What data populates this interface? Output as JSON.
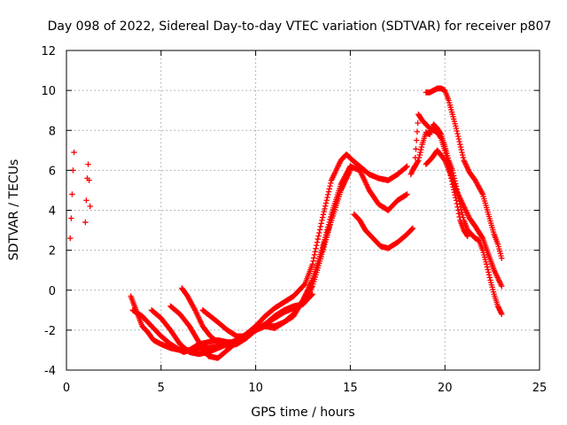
{
  "chart_data": {
    "type": "scatter",
    "title": "Day 098 of 2022, Sidereal Day-to-day VTEC variation (SDTVAR) for receiver p807",
    "xlabel": "GPS time / hours",
    "ylabel": "SDTVAR / TECUs",
    "xlim": [
      0,
      25
    ],
    "ylim": [
      -4,
      12
    ],
    "xticks": [
      0,
      5,
      10,
      15,
      20,
      25
    ],
    "yticks": [
      -4,
      -2,
      0,
      2,
      4,
      6,
      8,
      10,
      12
    ],
    "xtick_labels": [
      "0",
      "5",
      "10",
      "15",
      "20",
      "25"
    ],
    "ytick_labels": [
      "-4",
      "-2",
      "0",
      "2",
      "4",
      "6",
      "8",
      "10",
      "12"
    ],
    "grid": true,
    "marker": "plus",
    "color": "#ff0000",
    "series": [
      {
        "name": "s1",
        "x": [
          0.2,
          0.25,
          0.3,
          0.35,
          0.4
        ],
        "y": [
          2.6,
          3.6,
          4.8,
          6.0,
          6.9
        ]
      },
      {
        "name": "s2",
        "x": [
          1.0,
          1.05,
          1.1,
          1.15,
          1.2,
          1.25
        ],
        "y": [
          3.4,
          4.5,
          5.6,
          6.3,
          5.5,
          4.2
        ]
      },
      {
        "name": "s3",
        "x": [
          3.4,
          3.6,
          3.8,
          4.0,
          4.3,
          4.6,
          5.0,
          5.5,
          6.0,
          6.5,
          7.0,
          7.5,
          8.0,
          8.5,
          9.0,
          9.5,
          10.0,
          10.5,
          11.0,
          11.5,
          12.0,
          12.3,
          12.6,
          13.0,
          13.5,
          14.0,
          14.5,
          14.8,
          15.0,
          15.5,
          16.0,
          16.5,
          17.0,
          17.5,
          18.0
        ],
        "y": [
          -0.3,
          -0.8,
          -1.3,
          -1.8,
          -2.1,
          -2.5,
          -2.7,
          -2.9,
          -3.0,
          -3.0,
          -2.9,
          -2.9,
          -2.8,
          -2.7,
          -2.5,
          -2.2,
          -1.8,
          -1.3,
          -0.9,
          -0.6,
          -0.3,
          0.0,
          0.3,
          1.3,
          3.5,
          5.5,
          6.5,
          6.8,
          6.6,
          6.2,
          5.8,
          5.6,
          5.5,
          5.8,
          6.2
        ]
      },
      {
        "name": "s4",
        "x": [
          3.5,
          4.0,
          4.5,
          5.0,
          5.5,
          6.0,
          6.2,
          6.5,
          7.0,
          7.5,
          8.0,
          8.5,
          9.0,
          9.5,
          10.0,
          10.5,
          11.0,
          11.5,
          12.0,
          12.5,
          13.0,
          13.5,
          14.0,
          14.5,
          15.0,
          15.5,
          16.0,
          16.5,
          17.0,
          17.5,
          18.0
        ],
        "y": [
          -1.0,
          -1.3,
          -1.8,
          -2.3,
          -2.7,
          -3.0,
          -3.1,
          -3.0,
          -2.7,
          -2.6,
          -2.5,
          -2.6,
          -2.6,
          -2.3,
          -2.0,
          -1.8,
          -1.8,
          -1.6,
          -1.3,
          -0.5,
          0.5,
          2.0,
          3.8,
          5.3,
          6.2,
          6.0,
          5.0,
          4.3,
          4.0,
          4.5,
          4.8
        ]
      },
      {
        "name": "s5",
        "x": [
          4.5,
          5.0,
          5.5,
          6.0,
          6.5,
          7.0,
          7.5,
          8.0,
          8.5,
          9.0,
          9.5,
          10.0,
          10.5,
          11.0,
          11.5,
          12.0,
          12.5,
          13.0,
          13.5,
          14.0,
          14.5,
          15.0
        ],
        "y": [
          -1.0,
          -1.4,
          -2.0,
          -2.7,
          -3.1,
          -3.2,
          -3.1,
          -2.9,
          -2.7,
          -2.5,
          -2.3,
          -2.0,
          -1.8,
          -1.9,
          -1.6,
          -1.2,
          -0.5,
          0.5,
          2.0,
          3.5,
          5.0,
          6.2
        ]
      },
      {
        "name": "s6",
        "x": [
          5.5,
          6.0,
          6.5,
          7.0,
          7.5,
          8.0,
          8.5,
          9.0,
          9.5,
          10.0,
          10.5,
          11.0,
          11.5,
          12.0,
          12.5,
          13.0,
          13.5,
          14.0,
          14.5,
          15.0
        ],
        "y": [
          -0.8,
          -1.2,
          -1.8,
          -2.6,
          -3.3,
          -3.4,
          -3.0,
          -2.6,
          -2.3,
          -2.0,
          -1.7,
          -1.4,
          -1.1,
          -0.9,
          -0.7,
          0.2,
          1.8,
          3.5,
          5.0,
          6.0
        ]
      },
      {
        "name": "s7",
        "x": [
          6.1,
          6.4,
          6.8,
          7.2,
          7.6,
          8.0,
          8.5,
          9.0,
          9.5,
          10.0
        ],
        "y": [
          0.1,
          -0.3,
          -1.0,
          -1.8,
          -2.3,
          -2.6,
          -2.8,
          -2.7,
          -2.4,
          -2.0
        ]
      },
      {
        "name": "s8",
        "x": [
          7.2,
          7.6,
          8.0,
          8.5,
          9.0,
          9.5,
          10.0,
          10.5,
          11.0,
          11.5,
          12.0,
          12.5,
          13.0
        ],
        "y": [
          -1.0,
          -1.3,
          -1.6,
          -2.0,
          -2.3,
          -2.3,
          -2.0,
          -1.7,
          -1.3,
          -1.0,
          -0.8,
          -0.7,
          -0.2
        ]
      },
      {
        "name": "s9",
        "x": [
          15.2,
          15.5,
          15.8,
          16.0,
          16.3,
          16.6,
          17.0,
          17.5,
          18.0,
          18.3
        ],
        "y": [
          3.8,
          3.5,
          3.0,
          2.8,
          2.5,
          2.2,
          2.1,
          2.4,
          2.8,
          3.1
        ]
      },
      {
        "name": "s10",
        "x": [
          18.3,
          18.6,
          18.8,
          19.0,
          19.2,
          19.4,
          19.6,
          19.8,
          20.0,
          20.2,
          20.4,
          20.6,
          20.8,
          21.0,
          21.2,
          21.4,
          21.6,
          21.8,
          22.0,
          22.2,
          22.4,
          22.6,
          22.8,
          23.0
        ],
        "y": [
          6.0,
          6.5,
          7.3,
          7.9,
          7.8,
          8.3,
          8.1,
          7.8,
          7.2,
          6.5,
          6.0,
          5.2,
          4.3,
          3.5,
          3.0,
          2.8,
          2.6,
          2.5,
          2.0,
          1.3,
          0.5,
          -0.2,
          -0.8,
          -1.2
        ]
      },
      {
        "name": "s11",
        "x": [
          18.2,
          18.4,
          18.6,
          18.8,
          19.0,
          19.2,
          19.4,
          19.6,
          19.8,
          20.0,
          20.2,
          20.4,
          20.6,
          20.8,
          21.0,
          21.2
        ],
        "y": [
          5.8,
          6.2,
          8.8,
          8.5,
          8.3,
          8.1,
          8.0,
          7.9,
          7.6,
          7.0,
          6.2,
          5.3,
          4.5,
          3.5,
          3.0,
          2.7
        ]
      },
      {
        "name": "s12",
        "x": [
          19.0,
          19.2,
          19.4,
          19.6,
          19.8,
          20.0,
          20.2,
          20.4,
          20.6,
          20.8,
          21.0,
          21.3,
          21.6,
          22.0,
          22.3,
          22.6,
          22.8,
          23.0
        ],
        "y": [
          9.9,
          9.9,
          10.0,
          10.1,
          10.1,
          10.0,
          9.5,
          8.8,
          8.1,
          7.3,
          6.5,
          5.9,
          5.5,
          4.8,
          3.8,
          2.8,
          2.3,
          1.6
        ]
      },
      {
        "name": "s13",
        "x": [
          19.0,
          19.3,
          19.6,
          20.0,
          20.3,
          20.6,
          21.0,
          21.3,
          21.6,
          22.0,
          22.3,
          22.6,
          23.0
        ],
        "y": [
          6.3,
          6.6,
          7.0,
          6.5,
          5.8,
          5.0,
          4.2,
          3.6,
          3.2,
          2.6,
          1.8,
          1.0,
          0.2
        ]
      }
    ]
  }
}
